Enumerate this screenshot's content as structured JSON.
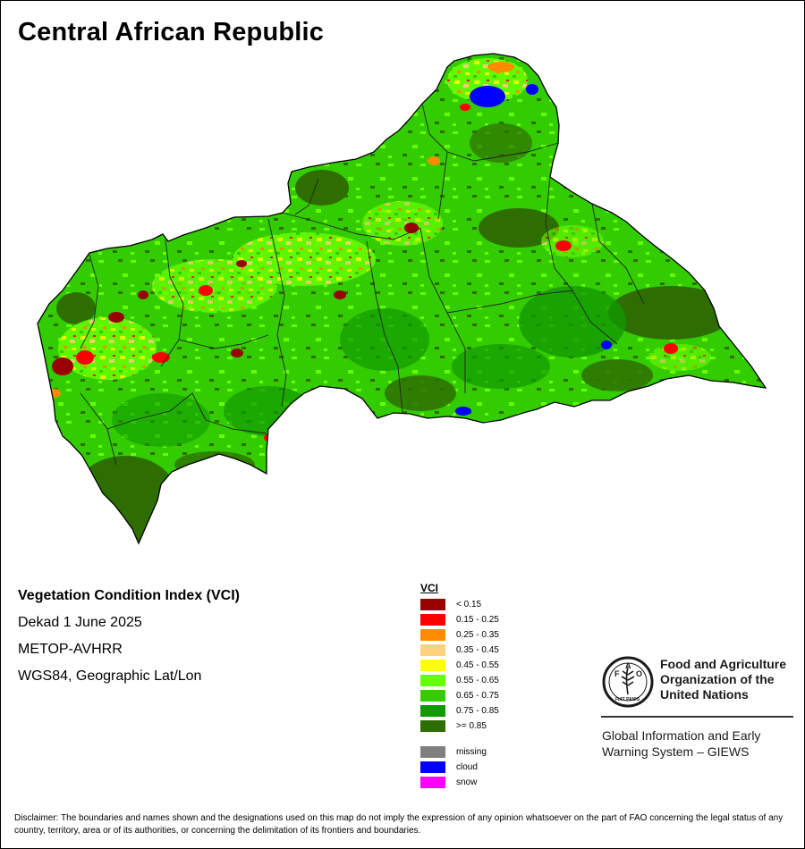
{
  "title": "Central African Republic",
  "info": {
    "index_name": "Vegetation Condition Index (VCI)",
    "period": "Dekad 1 June 2025",
    "sensor": "METOP-AVHRR",
    "projection": "WGS84, Geographic Lat/Lon"
  },
  "legend": {
    "title": "VCI",
    "classes": [
      {
        "label": "< 0.15",
        "color": "#990000"
      },
      {
        "label": "0.15 - 0.25",
        "color": "#ff0000"
      },
      {
        "label": "0.25 - 0.35",
        "color": "#ff8c00"
      },
      {
        "label": "0.35 - 0.45",
        "color": "#ffd27f"
      },
      {
        "label": "0.45 - 0.55",
        "color": "#ffff00"
      },
      {
        "label": "0.55 - 0.65",
        "color": "#66ff00"
      },
      {
        "label": "0.65 - 0.75",
        "color": "#33cc00"
      },
      {
        "label": "0.75 - 0.85",
        "color": "#119900"
      },
      {
        "label": ">= 0.85",
        "color": "#2e6e00"
      }
    ],
    "special": [
      {
        "label": "missing",
        "color": "#7f7f7f"
      },
      {
        "label": "cloud",
        "color": "#0000ff"
      },
      {
        "label": "snow",
        "color": "#ff00ff"
      }
    ]
  },
  "fao": {
    "logo_letters": [
      "F",
      "A",
      "O"
    ],
    "logo_motto": "FIAT PANIS",
    "name_lines": [
      "Food and Agriculture",
      "Organization of the",
      "United Nations"
    ],
    "giews_lines": [
      "Global Information and Early",
      "Warning System – GIEWS"
    ]
  },
  "disclaimer": "Disclaimer: The boundaries and names shown and the designations used on this map do not imply the expression of any opinion whatsoever on the part of FAO concerning the legal status of any country, territory, area or of its authorities, or concerning the delimitation of its frontiers and boundaries."
}
